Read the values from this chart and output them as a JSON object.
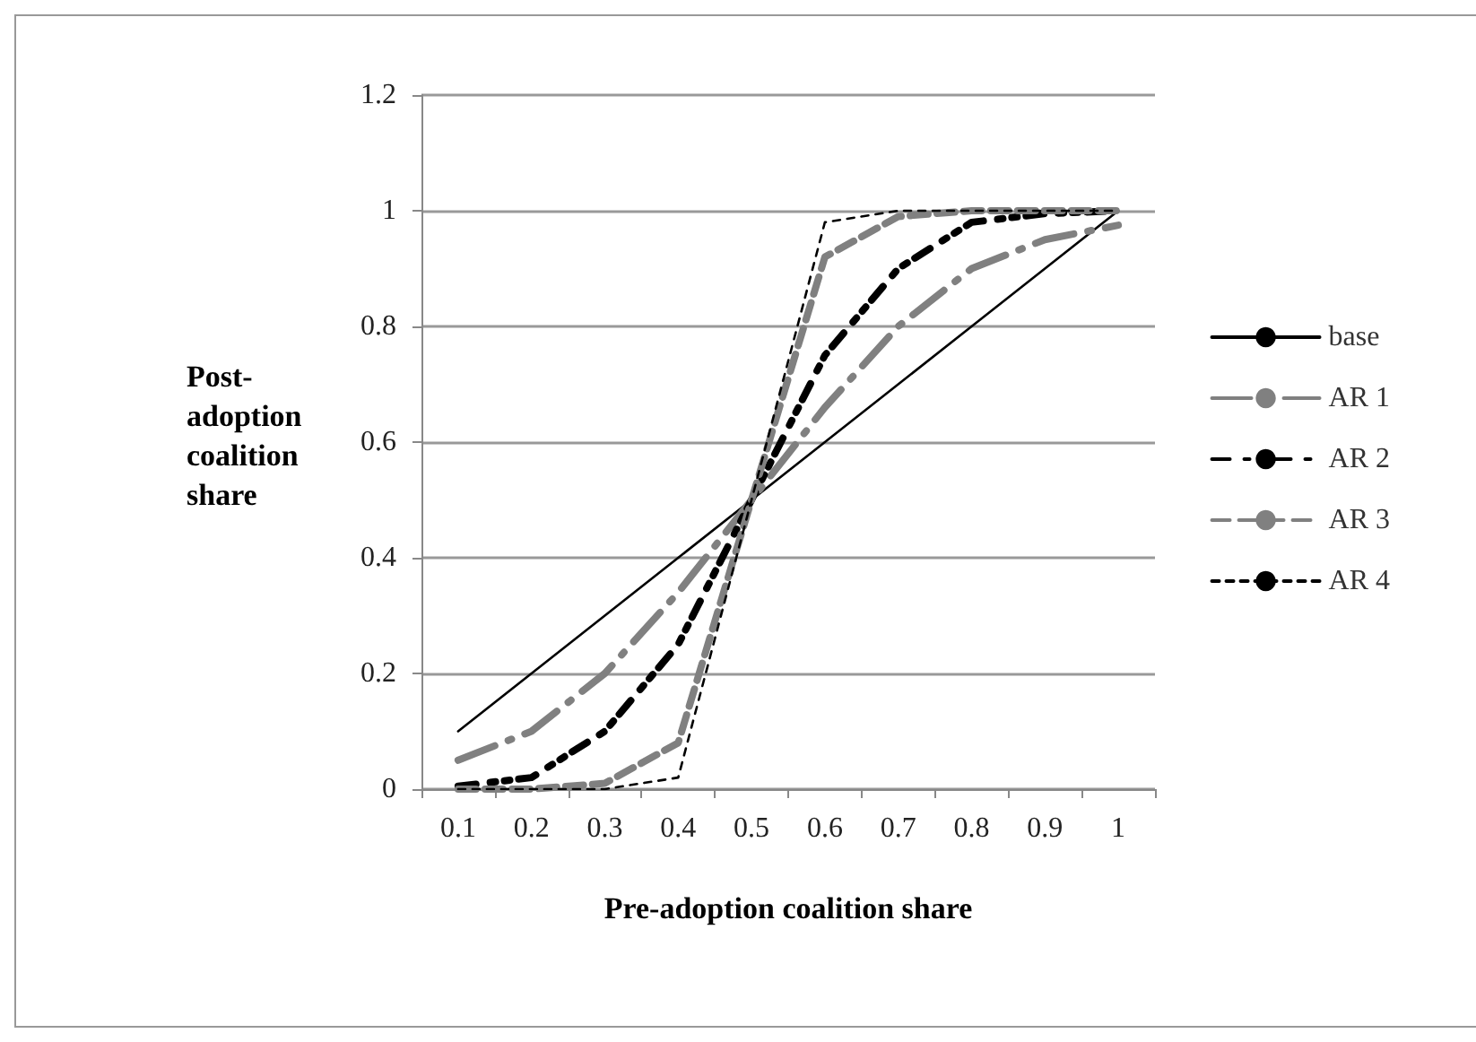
{
  "chart_data": {
    "type": "line",
    "xlabel": "Pre-adoption coalition share",
    "ylabel": "Post-\nadoption\ncoalition\nshare",
    "categories": [
      "0.1",
      "0.2",
      "0.3",
      "0.4",
      "0.5",
      "0.6",
      "0.7",
      "0.8",
      "0.9",
      "1"
    ],
    "series": [
      {
        "name": "base",
        "color": "#000000",
        "line_style": "solid",
        "values": [
          0.1,
          0.2,
          0.3,
          0.4,
          0.5,
          0.6,
          0.7,
          0.8,
          0.9,
          1
        ]
      },
      {
        "name": "AR 1",
        "color": "#808080",
        "line_style": "dashed",
        "values": [
          0.05,
          0.1,
          0.2,
          0.34,
          0.5,
          0.66,
          0.8,
          0.9,
          0.95,
          0.975
        ]
      },
      {
        "name": "AR 2",
        "color": "#000000",
        "line_style": "dashed",
        "values": [
          0.005,
          0.02,
          0.1,
          0.25,
          0.5,
          0.75,
          0.9,
          0.98,
          0.995,
          1
        ]
      },
      {
        "name": "AR 3",
        "color": "#808080",
        "line_style": "dashed",
        "values": [
          0,
          0,
          0.01,
          0.08,
          0.5,
          0.92,
          0.99,
          1,
          1,
          1
        ]
      },
      {
        "name": "AR 4",
        "color": "#000000",
        "line_style": "dashed",
        "values": [
          0,
          0,
          0,
          0.02,
          0.5,
          0.98,
          1,
          1,
          1,
          1
        ]
      }
    ],
    "ylim": [
      0,
      1.2
    ],
    "yticks": [
      0,
      0.2,
      0.4,
      0.6,
      0.8,
      1,
      1.2
    ],
    "grid": "y",
    "legend": "right",
    "marker": "none"
  }
}
